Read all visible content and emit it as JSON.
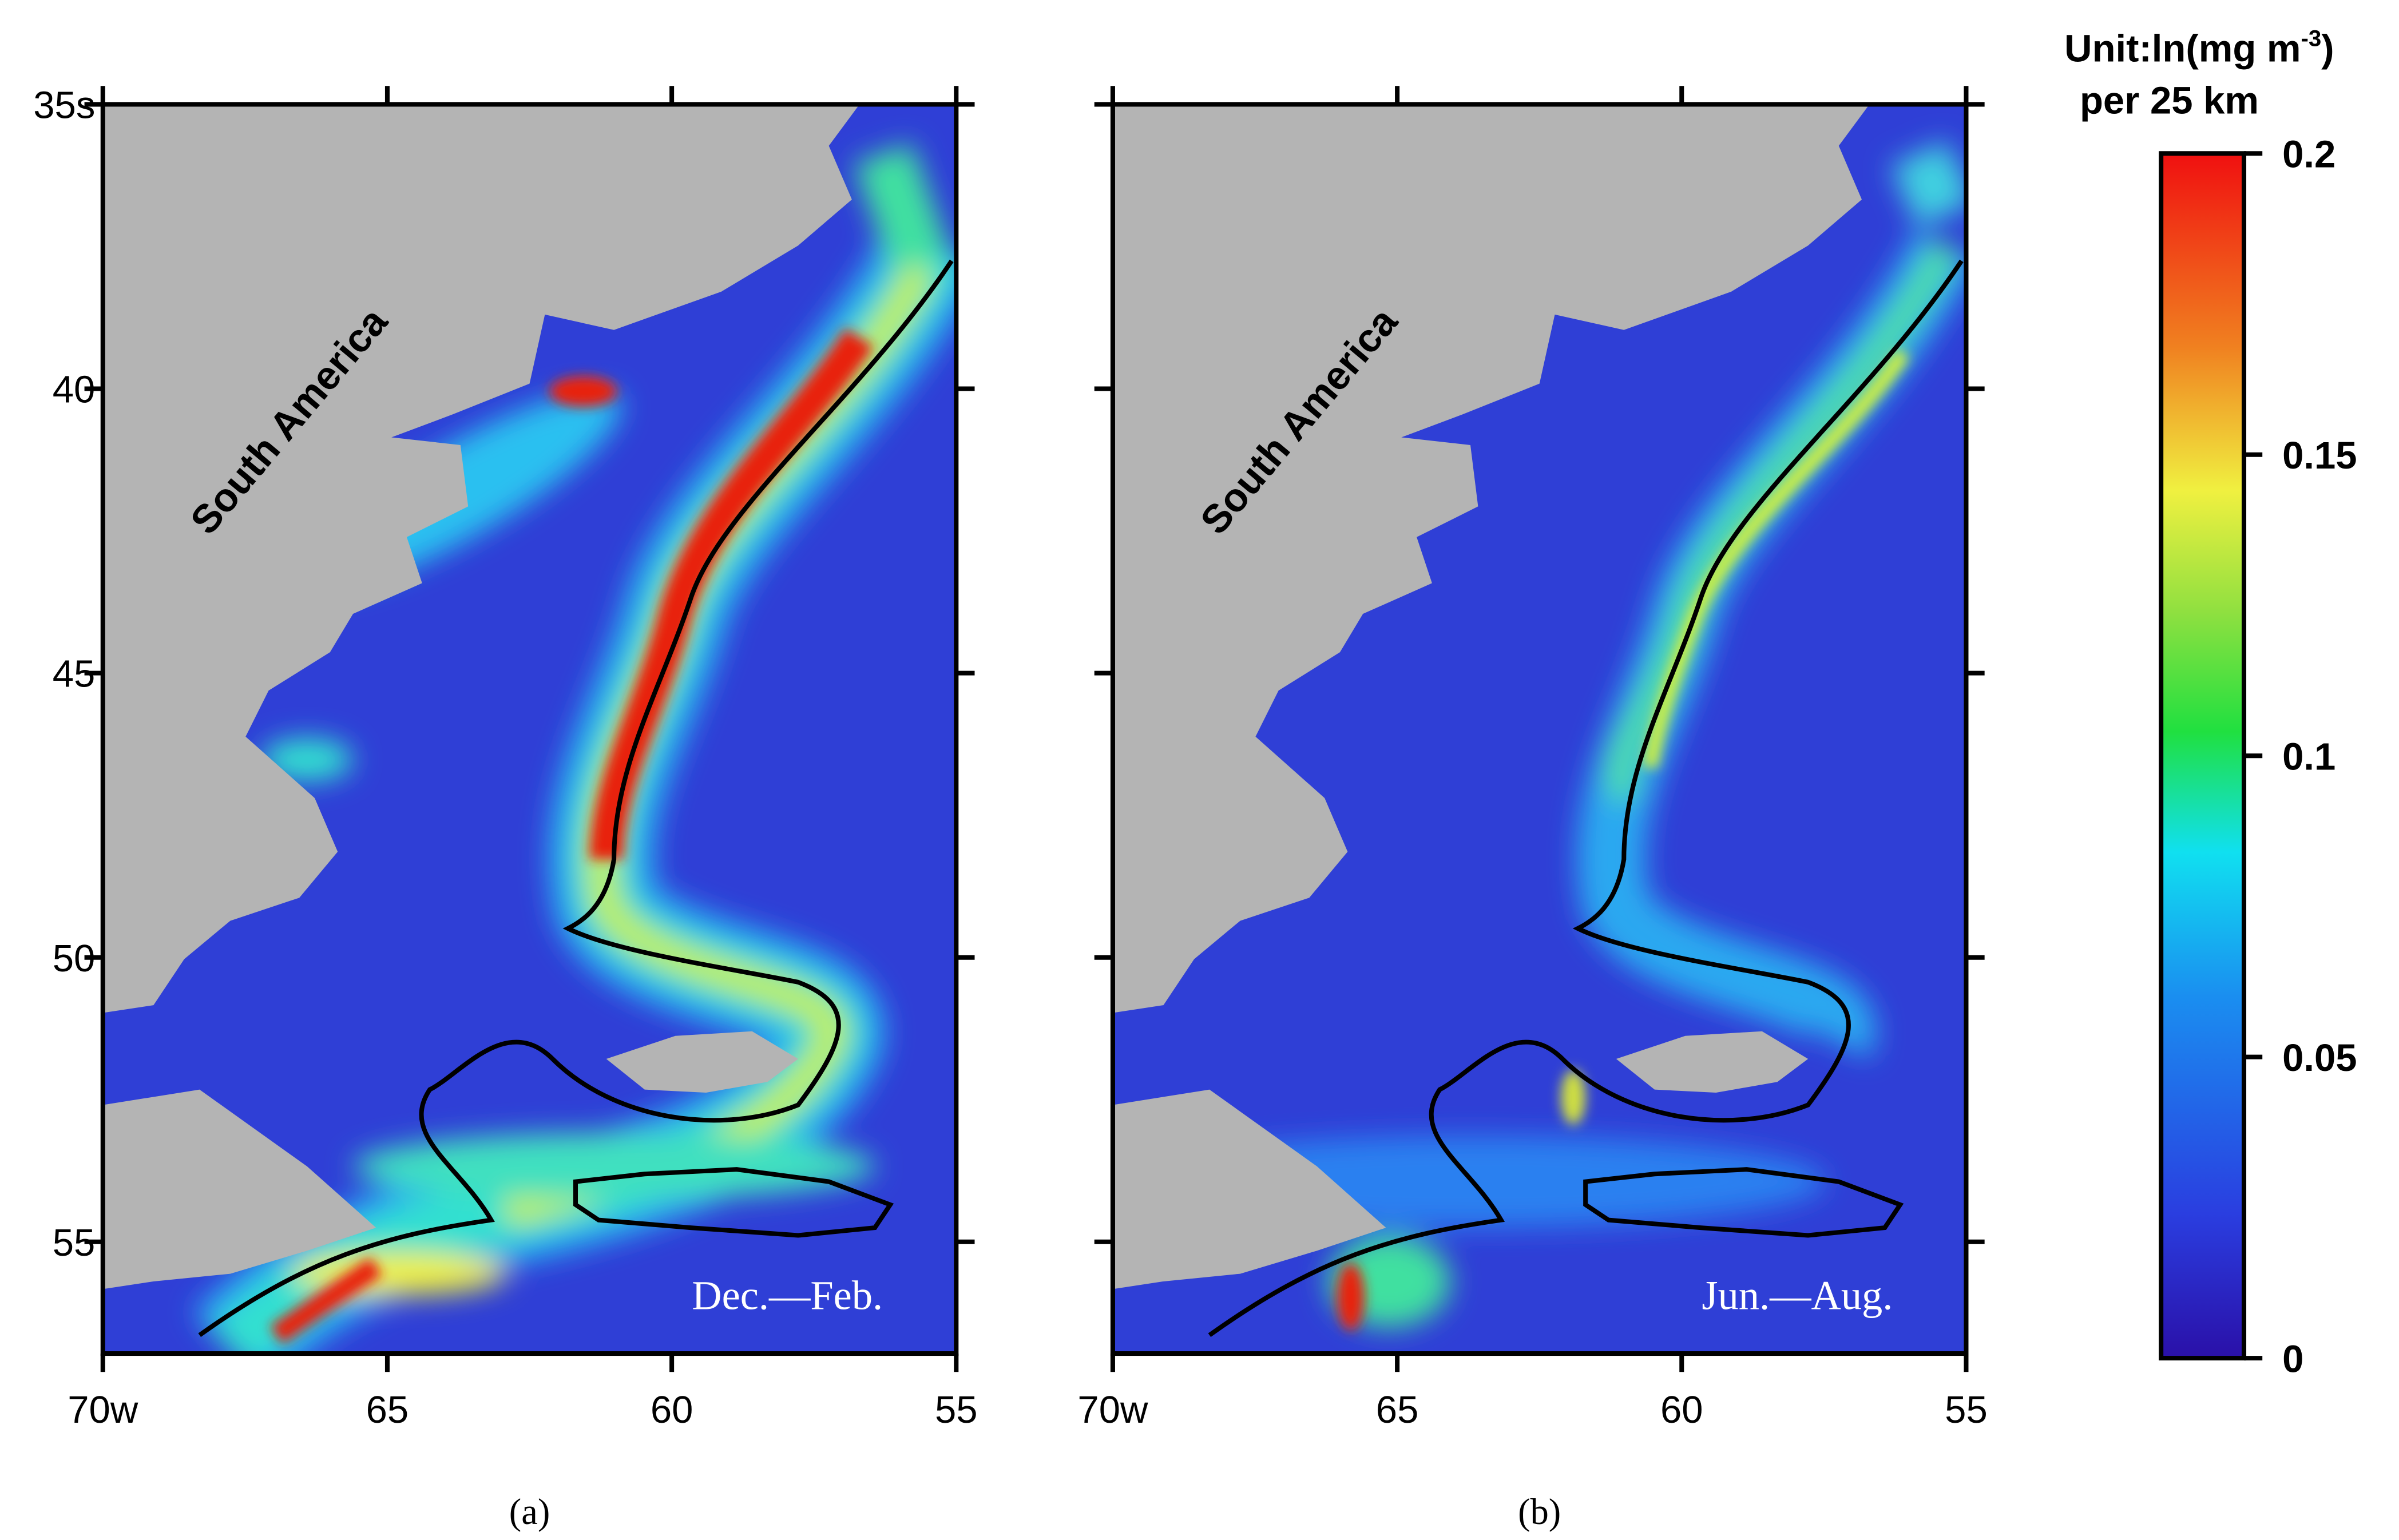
{
  "colorbar": {
    "title_main": "Unit:ln(mg m",
    "title_sup": "-3",
    "title_close": ")",
    "title_line2": "per 25 km",
    "ticks": [
      0,
      0.05,
      0.1,
      0.15,
      0.2
    ]
  },
  "panels": [
    {
      "label": "(a)",
      "season": "Dec.—Feb.",
      "map_label": "South America",
      "x_ticks": [
        "70w",
        "65",
        "60",
        "55"
      ],
      "y_ticks": [
        "35s",
        "40",
        "45",
        "50",
        "55"
      ]
    },
    {
      "label": "(b)",
      "season": "Jun.—Aug.",
      "map_label": "South America",
      "x_ticks": [
        "70w",
        "65",
        "60",
        "55"
      ]
    }
  ]
}
